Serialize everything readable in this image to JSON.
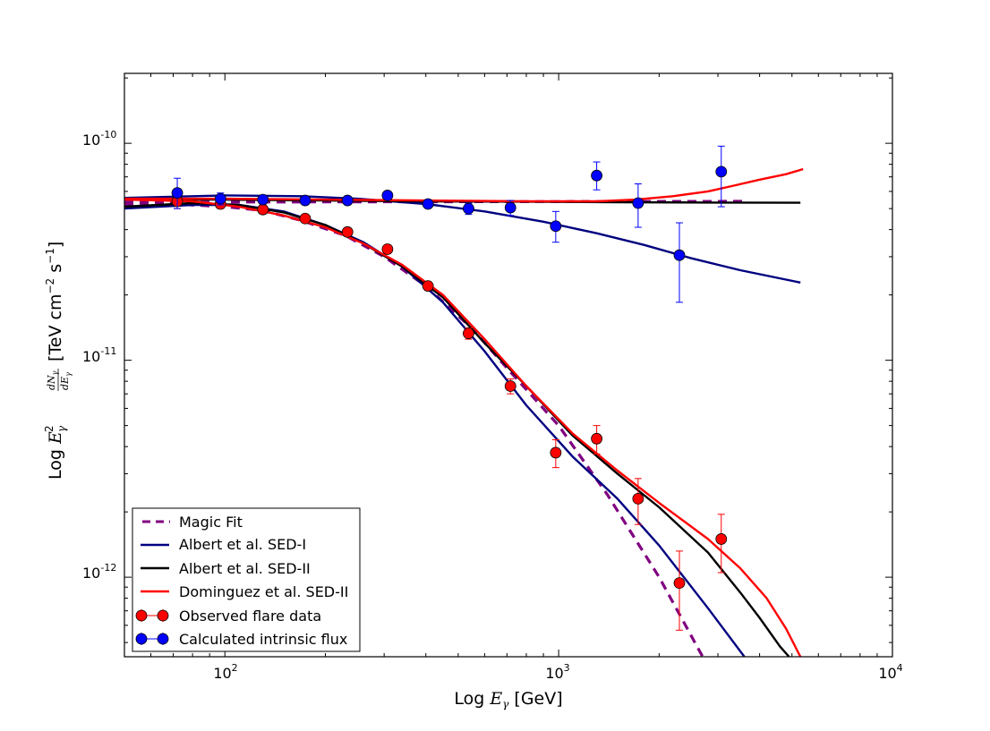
{
  "chart_data": {
    "type": "line",
    "xscale": "log",
    "yscale": "log",
    "xlim": [
      50,
      10000
    ],
    "ylim": [
      4.3e-13,
      2.1e-10
    ],
    "xlabel": "Log E_γ [GeV]",
    "ylabel": "Log E_γ² dN_γ/dE_γ [TeV cm⁻² s⁻¹]",
    "xlabel_parts": {
      "prefix": "Log ",
      "sym": "E",
      "sub": "γ",
      "suffix": " [GeV]"
    },
    "ylabel_parts": {
      "prefix": "Log ",
      "sym": "E",
      "sub": "γ",
      "sup": "2",
      "frac_num": "dN",
      "frac_den": "dE",
      "frac_sub": "γ",
      "unit_a": "[TeV cm",
      "unit_exp_a": "−2",
      "unit_b": " s",
      "unit_exp_b": "−1",
      "unit_end": "]"
    },
    "x_ticks": [
      {
        "base": "10",
        "exp": "2"
      },
      {
        "base": "10",
        "exp": "3"
      },
      {
        "base": "10",
        "exp": "4"
      }
    ],
    "y_ticks": [
      {
        "base": "10",
        "exp": "-12"
      },
      {
        "base": "10",
        "exp": "-11"
      },
      {
        "base": "10",
        "exp": "-10"
      }
    ],
    "x_tick_values": [
      100,
      1000,
      10000
    ],
    "y_tick_values": [
      1e-12,
      1e-11,
      1e-10
    ],
    "legend_position": "lower-left",
    "legend": [
      {
        "label": "Magic Fit",
        "kind": "line",
        "color": "#800080",
        "dash": "dashed"
      },
      {
        "label": "Albert et al. SED-I",
        "kind": "line",
        "color": "#000080",
        "dash": "solid"
      },
      {
        "label": "Albert et al. SED-II",
        "kind": "line",
        "color": "#000000",
        "dash": "solid"
      },
      {
        "label": "Dominguez et al. SED-II",
        "kind": "line",
        "color": "#ff0000",
        "dash": "solid"
      },
      {
        "label": "Observed flare data",
        "kind": "errorbar",
        "color": "#ff0000"
      },
      {
        "label": "Calculated intrinsic flux",
        "kind": "errorbar",
        "color": "#0000ff"
      }
    ],
    "series": [
      {
        "name": "Magic Fit (observed)",
        "color": "#800080",
        "dash": "dashed",
        "x": [
          50,
          70,
          100,
          130,
          170,
          230,
          300,
          400,
          550,
          700,
          1000,
          1400,
          2000,
          2700
        ],
        "y": [
          5.2e-11,
          5.25e-11,
          5.1e-11,
          4.9e-11,
          4.4e-11,
          3.75e-11,
          3e-11,
          2.2e-11,
          1.4e-11,
          9.2e-12,
          5e-12,
          2.4e-12,
          1e-12,
          4.3e-13
        ]
      },
      {
        "name": "Magic Fit (intrinsic)",
        "color": "#800080",
        "dash": "dashed",
        "x": [
          50,
          3600
        ],
        "y": [
          5.35e-11,
          5.4e-11
        ]
      },
      {
        "name": "Albert et al. SED-I (observed)",
        "color": "#000080",
        "dash": "solid",
        "x": [
          50,
          80,
          110,
          150,
          200,
          260,
          340,
          450,
          600,
          800,
          1100,
          1500,
          2000,
          2800,
          3600
        ],
        "y": [
          5e-11,
          5.2e-11,
          5.2e-11,
          4.85e-11,
          4.2e-11,
          3.5e-11,
          2.7e-11,
          1.85e-11,
          1.1e-11,
          6.2e-12,
          3.6e-12,
          2.3e-12,
          1.4e-12,
          7.2e-13,
          4.3e-13
        ]
      },
      {
        "name": "Albert et al. SED-I (intrinsic)",
        "color": "#000080",
        "dash": "solid",
        "x": [
          50,
          100,
          170,
          250,
          400,
          600,
          900,
          1300,
          1800,
          2500,
          3500,
          5300
        ],
        "y": [
          5.6e-11,
          5.75e-11,
          5.7e-11,
          5.55e-11,
          5.25e-11,
          4.85e-11,
          4.35e-11,
          3.85e-11,
          3.4e-11,
          2.95e-11,
          2.6e-11,
          2.28e-11
        ]
      },
      {
        "name": "Albert et al. SED-II (observed)",
        "color": "#000000",
        "dash": "solid",
        "x": [
          50,
          80,
          110,
          150,
          200,
          260,
          340,
          450,
          600,
          800,
          1100,
          1500,
          2000,
          2800,
          3500,
          4000,
          4600,
          4900
        ],
        "y": [
          5.1e-11,
          5.3e-11,
          5.2e-11,
          4.8e-11,
          4.2e-11,
          3.45e-11,
          2.7e-11,
          1.95e-11,
          1.2e-11,
          7.6e-12,
          4.5e-12,
          3e-12,
          2.1e-12,
          1.3e-12,
          8.5e-13,
          6.5e-13,
          4.8e-13,
          4.3e-13
        ]
      },
      {
        "name": "Albert et al. SED-II (intrinsic)",
        "color": "#000000",
        "dash": "solid",
        "x": [
          50,
          100,
          200,
          400,
          800,
          1500,
          3000,
          5300
        ],
        "y": [
          5.5e-11,
          5.5e-11,
          5.45e-11,
          5.4e-11,
          5.38e-11,
          5.35e-11,
          5.33e-11,
          5.32e-11
        ]
      },
      {
        "name": "Dominguez et al. SED-II (observed)",
        "color": "#ff0000",
        "dash": "solid",
        "x": [
          50,
          80,
          110,
          150,
          200,
          260,
          340,
          450,
          600,
          800,
          1100,
          1500,
          2000,
          2800,
          3500,
          4200,
          4800,
          5300
        ],
        "y": [
          5.5e-11,
          5.4e-11,
          5.1e-11,
          4.65e-11,
          4.1e-11,
          3.45e-11,
          2.75e-11,
          2e-11,
          1.25e-11,
          7.6e-12,
          4.6e-12,
          3.1e-12,
          2.2e-12,
          1.5e-12,
          1.1e-12,
          8e-13,
          5.8e-13,
          4.3e-13
        ]
      },
      {
        "name": "Dominguez et al. SED-II (intrinsic)",
        "color": "#ff0000",
        "dash": "solid",
        "x": [
          50,
          100,
          200,
          400,
          800,
          1300,
          1700,
          2200,
          2800,
          3300,
          4000,
          4800,
          5400
        ],
        "y": [
          5.55e-11,
          5.55e-11,
          5.5e-11,
          5.45e-11,
          5.4e-11,
          5.4e-11,
          5.5e-11,
          5.7e-11,
          6e-11,
          6.35e-11,
          6.8e-11,
          7.2e-11,
          7.6e-11
        ]
      }
    ],
    "points": [
      {
        "name": "Observed flare data",
        "color": "#ff0000",
        "x": [
          72,
          97,
          130,
          174,
          233,
          307,
          406,
          537,
          717,
          980,
          1300,
          1730,
          2300,
          3070
        ],
        "y": [
          5.4e-11,
          5.25e-11,
          4.95e-11,
          4.5e-11,
          3.9e-11,
          3.25e-11,
          2.2e-11,
          1.33e-11,
          7.6e-12,
          3.75e-12,
          4.35e-12,
          2.3e-12,
          9.4e-13,
          1.5e-12
        ],
        "yerr_low": [
          5e-11,
          5e-11,
          4.75e-11,
          4.35e-11,
          3.75e-11,
          3.1e-11,
          2.1e-11,
          1.25e-11,
          7e-12,
          3.2e-12,
          3.7e-12,
          1.75e-12,
          5.7e-13,
          1.05e-12
        ],
        "yerr_high": [
          5.8e-11,
          5.5e-11,
          5.15e-11,
          4.65e-11,
          4.05e-11,
          3.4e-11,
          2.3e-11,
          1.41e-11,
          8.2e-12,
          4.3e-12,
          5e-12,
          2.85e-12,
          1.32e-12,
          1.95e-12
        ]
      },
      {
        "name": "Calculated intrinsic flux",
        "color": "#0000ff",
        "x": [
          72,
          97,
          130,
          174,
          233,
          307,
          406,
          537,
          717,
          980,
          1300,
          1730,
          2300,
          3070
        ],
        "y": [
          5.9e-11,
          5.55e-11,
          5.5e-11,
          5.45e-11,
          5.45e-11,
          5.75e-11,
          5.25e-11,
          5e-11,
          5.05e-11,
          4.15e-11,
          7.1e-11,
          5.3e-11,
          3.05e-11,
          7.4e-11
        ],
        "yerr_low": [
          5e-11,
          5.2e-11,
          5.25e-11,
          5.25e-11,
          5.25e-11,
          5.55e-11,
          5.05e-11,
          4.7e-11,
          4.65e-11,
          3.5e-11,
          6.1e-11,
          4.1e-11,
          1.85e-11,
          5.1e-11
        ],
        "yerr_high": [
          6.9e-11,
          5.9e-11,
          5.75e-11,
          5.65e-11,
          5.65e-11,
          5.95e-11,
          5.45e-11,
          5.3e-11,
          5.45e-11,
          4.85e-11,
          8.2e-11,
          6.5e-11,
          4.3e-11,
          9.7e-11
        ]
      }
    ]
  }
}
